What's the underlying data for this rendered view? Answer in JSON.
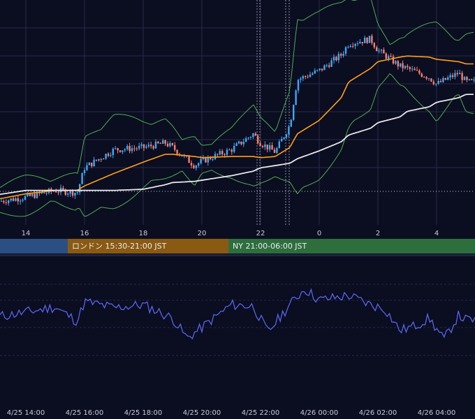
{
  "colors": {
    "background": "#0b0d21",
    "grid": "#272b47",
    "candle_up": "#3fa9f5",
    "candle_down": "#ff7e6a",
    "bollinger": "#4caf50",
    "ma_mid": "#ff9f1a",
    "ma_long": "#e8e8ea",
    "oscillator": "#5865e8",
    "session_asia": "#2b4f82",
    "session_london": "#8a5a12",
    "session_ny": "#2e6e3d"
  },
  "main_axis": {
    "ticks": [
      "14",
      "16",
      "18",
      "20",
      "22",
      "0",
      "2",
      "4"
    ]
  },
  "sessions": [
    {
      "label": ""
    },
    {
      "label": "ロンドン 15:30-21:00 JST"
    },
    {
      "label": "NY 21:00-06:00 JST"
    }
  ],
  "bottom_axis": {
    "ticks": [
      "4/25 14:00",
      "4/25 16:00",
      "4/25 18:00",
      "4/25 20:00",
      "4/25 22:00",
      "4/26 00:00",
      "4/26 02:00",
      "4/26 04:00"
    ]
  },
  "chart_data": [
    {
      "type": "line",
      "name": "price",
      "x": [
        "13:00",
        "14:00",
        "15:00",
        "15:45",
        "16:00",
        "17:00",
        "18:00",
        "18:45",
        "19:00",
        "19:45",
        "20:00",
        "21:00",
        "21:45",
        "22:00",
        "22:30",
        "23:00",
        "23:15",
        "00:00",
        "00:45",
        "01:00",
        "01:45",
        "02:00",
        "02:45",
        "03:00",
        "03:45",
        "04:00",
        "04:45",
        "05:00"
      ],
      "series": [
        {
          "values": [
            10,
            14,
            20,
            18,
            40,
            56,
            58,
            62,
            58,
            42,
            46,
            56,
            70,
            62,
            54,
            78,
            118,
            126,
            140,
            150,
            154,
            144,
            130,
            128,
            120,
            114,
            124,
            116
          ]
        },
        {
          "values": [
            12,
            17,
            20,
            20,
            24,
            35,
            45,
            52,
            52,
            50,
            49,
            50,
            50,
            49,
            50,
            58,
            70,
            82,
            102,
            116,
            128,
            134,
            138,
            139,
            138,
            136,
            134,
            132
          ]
        },
        {
          "values": [
            16,
            20,
            20,
            20,
            20,
            20,
            21,
            25,
            27,
            28,
            29,
            33,
            37,
            40,
            42,
            44,
            48,
            55,
            63,
            69,
            75,
            80,
            85,
            90,
            94,
            98,
            102,
            105
          ]
        }
      ],
      "ylim": [
        0,
        170
      ]
    },
    {
      "type": "line",
      "name": "oscillator",
      "x": [
        "13:00",
        "14:00",
        "15:00",
        "15:45",
        "16:00",
        "17:00",
        "18:00",
        "19:00",
        "19:30",
        "20:00",
        "21:00",
        "21:45",
        "22:15",
        "23:00",
        "23:30",
        "00:00",
        "01:00",
        "01:45",
        "02:15",
        "02:45",
        "03:15",
        "03:45",
        "04:15",
        "04:45",
        "05:00"
      ],
      "values": [
        58,
        64,
        71,
        52,
        78,
        70,
        74,
        56,
        30,
        44,
        74,
        72,
        38,
        74,
        95,
        80,
        86,
        74,
        68,
        40,
        46,
        56,
        28,
        60,
        54
      ],
      "ylim": [
        0,
        110
      ]
    }
  ]
}
